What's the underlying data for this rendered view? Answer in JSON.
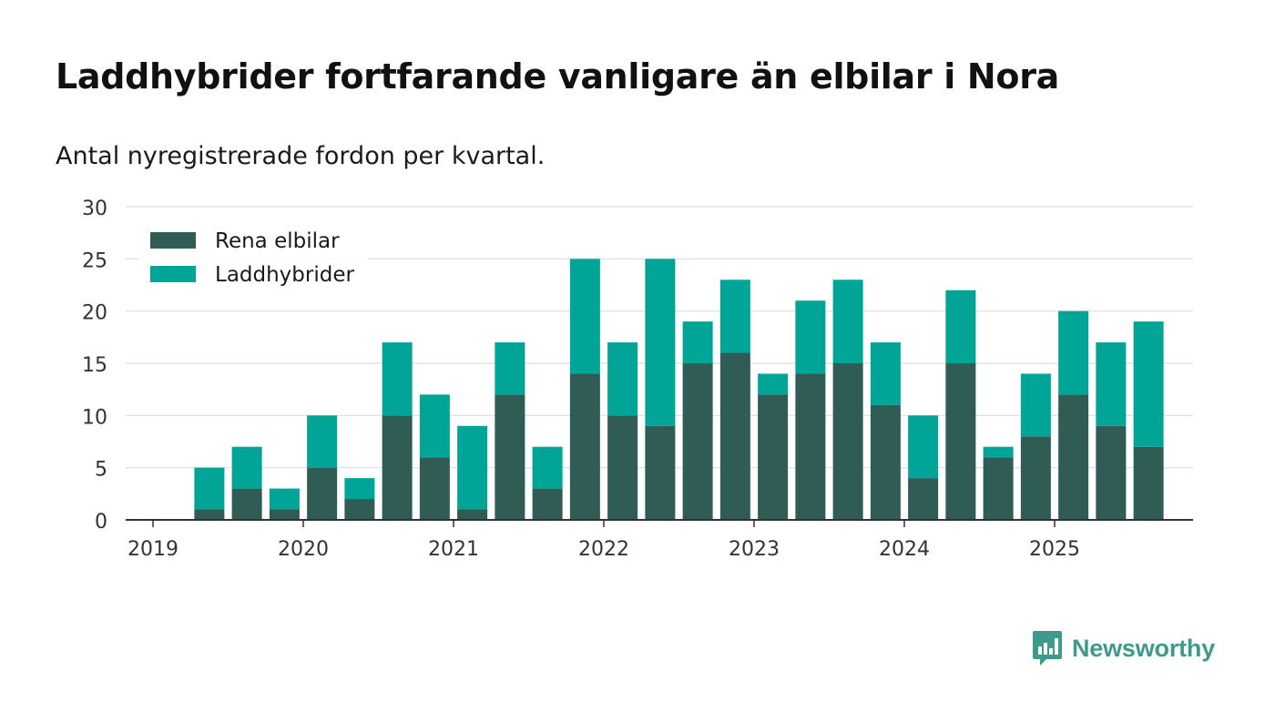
{
  "title": "Laddhybrider fortfarande vanligare än elbilar i Nora",
  "subtitle": "Antal nyregistrerade fordon per kvartal.",
  "brand": {
    "name": "Newsworthy"
  },
  "colors": {
    "elbilar": "#2f5d55",
    "laddhybrider": "#00a598",
    "grid": "#dddddd",
    "axis": "#333333",
    "brand": "#3d9a8c"
  },
  "chart_data": {
    "type": "bar",
    "stacked": true,
    "title": "Laddhybrider fortfarande vanligare än elbilar i Nora",
    "subtitle": "Antal nyregistrerade fordon per kvartal.",
    "xlabel": "",
    "ylabel": "",
    "ylim": [
      0,
      30
    ],
    "yticks": [
      0,
      5,
      10,
      15,
      20,
      25,
      30
    ],
    "xticks": [
      "2019",
      "2020",
      "2021",
      "2022",
      "2023",
      "2024",
      "2025"
    ],
    "grid": true,
    "legend_position": "top-left",
    "categories": [
      "2019 Q2",
      "2019 Q3",
      "2019 Q4",
      "2020 Q1",
      "2020 Q2",
      "2020 Q3",
      "2020 Q4",
      "2021 Q1",
      "2021 Q2",
      "2021 Q3",
      "2021 Q4",
      "2022 Q1",
      "2022 Q2",
      "2022 Q3",
      "2022 Q4",
      "2023 Q1",
      "2023 Q2",
      "2023 Q3",
      "2023 Q4",
      "2024 Q1",
      "2024 Q2",
      "2024 Q3",
      "2024 Q4",
      "2025 Q1",
      "2025 Q2",
      "2025 Q3"
    ],
    "series": [
      {
        "name": "Rena elbilar",
        "values": [
          1,
          3,
          1,
          5,
          2,
          10,
          6,
          1,
          12,
          3,
          14,
          10,
          9,
          15,
          16,
          12,
          14,
          15,
          11,
          4,
          15,
          6,
          8,
          12,
          9,
          7
        ]
      },
      {
        "name": "Laddhybrider",
        "values": [
          4,
          4,
          2,
          5,
          2,
          7,
          6,
          8,
          5,
          4,
          11,
          7,
          16,
          4,
          7,
          2,
          7,
          8,
          6,
          6,
          7,
          1,
          6,
          8,
          8,
          12
        ]
      }
    ]
  }
}
